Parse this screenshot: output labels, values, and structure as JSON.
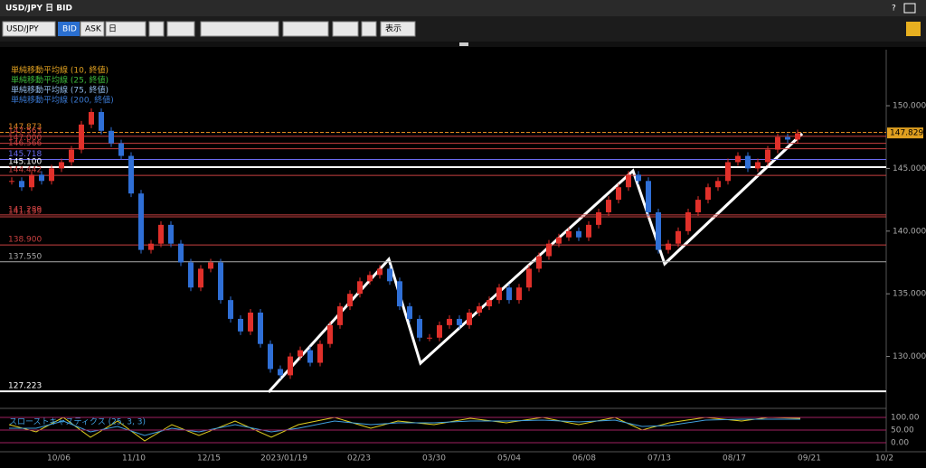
{
  "window_title": "USD/JPY 日 BID",
  "help": "?",
  "toolbar": {
    "symbol": "USD/JPY",
    "bid": "BID",
    "ask": "ASK",
    "period": "日",
    "display": "表示"
  },
  "chart_data": {
    "type": "candlestick",
    "legend": [
      {
        "name": "単純移動平均線 (10, 終値)",
        "color": "#e0a020"
      },
      {
        "name": "単純移動平均線 (25, 終値)",
        "color": "#3cb83c"
      },
      {
        "name": "単純移動平均線 (75, 終値)",
        "color": "#8fb8e8"
      },
      {
        "name": "単純移動平均線 (200, 終値)",
        "color": "#3a78d0"
      }
    ],
    "values": [
      144.0,
      143.5,
      144.5,
      144.0,
      145.0,
      145.5,
      146.5,
      148.5,
      149.5,
      148.0,
      147.0,
      146.0,
      143.0,
      138.5,
      139.0,
      140.5,
      139.0,
      137.5,
      135.5,
      137.0,
      137.5,
      134.5,
      133.0,
      132.0,
      133.5,
      131.0,
      129.0,
      128.5,
      130.0,
      130.5,
      129.5,
      131.0,
      132.5,
      134.0,
      135.0,
      136.0,
      136.5,
      137.0,
      136.0,
      134.0,
      133.0,
      131.5,
      131.5,
      132.5,
      133.0,
      132.5,
      133.5,
      134.0,
      134.5,
      135.5,
      134.5,
      135.5,
      137.0,
      138.0,
      139.0,
      139.5,
      140.0,
      139.5,
      140.5,
      141.5,
      142.5,
      143.5,
      144.5,
      144.0,
      141.5,
      138.5,
      139.0,
      140.0,
      141.5,
      142.5,
      143.5,
      144.0,
      145.5,
      146.0,
      145.0,
      145.5,
      146.5,
      147.5,
      147.3,
      147.8
    ],
    "up_color": "#e0302a",
    "down_color": "#2f6fd6",
    "ylim": [
      126.15,
      154.47
    ],
    "yticks": [
      {
        "value": 130,
        "label": "130.000"
      },
      {
        "value": 135,
        "label": "135.000"
      },
      {
        "value": 140,
        "label": "140.000"
      },
      {
        "value": 145,
        "label": "145.000"
      },
      {
        "value": 150,
        "label": "150.000"
      }
    ],
    "levels": [
      {
        "value": 147.873,
        "label": "147.873",
        "color": "#e08a20"
      },
      {
        "value": 147.563,
        "label": "147.563",
        "color": "#c84040"
      },
      {
        "value": 147.0,
        "label": "147.000",
        "color": "#c84040"
      },
      {
        "value": 146.566,
        "label": "146.566",
        "color": "#c84040"
      },
      {
        "value": 145.718,
        "label": "145.718",
        "color": "#6a6af0"
      },
      {
        "value": 145.1,
        "label": "145.100",
        "color": "#ffffff"
      },
      {
        "value": 144.442,
        "label": "144.442",
        "color": "#c84040"
      },
      {
        "value": 141.289,
        "label": "141.289",
        "color": "#c84040"
      },
      {
        "value": 141.139,
        "label": "141.139",
        "color": "#c84040"
      },
      {
        "value": 138.9,
        "label": "138.900",
        "color": "#c84040"
      },
      {
        "value": 137.55,
        "label": "137.550",
        "color": "#aaaaaa"
      },
      {
        "value": 127.223,
        "label": "127.223",
        "color": "#ffffff"
      }
    ],
    "last_price": {
      "value": 147.829,
      "label": "147.829"
    },
    "x_labels": [
      "10/06",
      "11/10",
      "12/15",
      "2023/01/19",
      "02/23",
      "03/30",
      "05/04",
      "06/08",
      "07/13",
      "08/17",
      "09/21",
      "10/2"
    ],
    "oscillator": {
      "title": "スローストキャスティクス (25, 3, 3)",
      "ylim": [
        0,
        100
      ],
      "yticks": [
        {
          "value": 100,
          "label": "100.00"
        },
        {
          "value": 50,
          "label": "50.00"
        },
        {
          "value": 0,
          "label": "0.00"
        }
      ]
    }
  }
}
